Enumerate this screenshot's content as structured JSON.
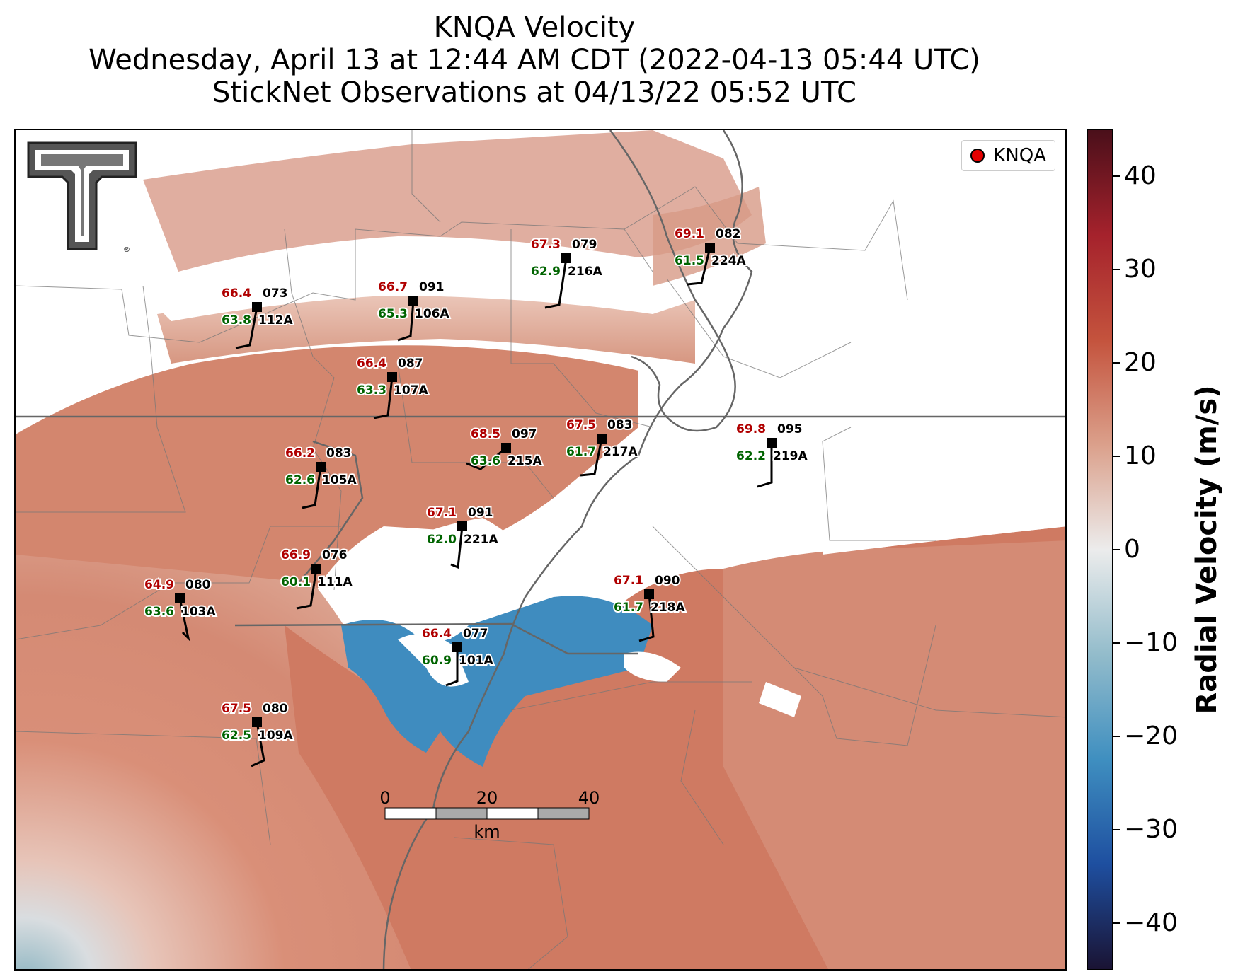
{
  "title": {
    "line1": "KNQA Velocity",
    "line2": "Wednesday, April 13 at 12:44 AM CDT (2022-04-13 05:44 UTC)",
    "line3": "StickNet Observations at 04/13/22 05:52 UTC"
  },
  "legend": {
    "label": "KNQA",
    "marker_color": "#e60000"
  },
  "colorbar": {
    "label": "Radial Velocity (m/s)",
    "min": -45,
    "max": 45,
    "ticks": [
      "40",
      "30",
      "20",
      "10",
      "0",
      "−10",
      "−20",
      "−30",
      "−40"
    ],
    "colors": [
      "#1a1333",
      "#1e4fa0",
      "#3f8fc0",
      "#93bccb",
      "#ececec",
      "#dba08b",
      "#c4533d",
      "#a5222c",
      "#4a0f1a"
    ]
  },
  "scalebar": {
    "ticks": [
      "0",
      "20",
      "40"
    ],
    "unit": "km"
  },
  "logo": {
    "name": "texas-tech-double-t-logo"
  },
  "stations": [
    {
      "id": "224A",
      "temp": "69.1",
      "dew": "61.5",
      "dir": "082"
    },
    {
      "id": "216A",
      "temp": "67.3",
      "dew": "62.9",
      "dir": "079"
    },
    {
      "id": "112A",
      "temp": "66.4",
      "dew": "63.8",
      "dir": "073"
    },
    {
      "id": "106A",
      "temp": "66.7",
      "dew": "65.3",
      "dir": "091"
    },
    {
      "id": "107A",
      "temp": "66.4",
      "dew": "63.3",
      "dir": "087"
    },
    {
      "id": "217A",
      "temp": "67.5",
      "dew": "61.7",
      "dir": "083"
    },
    {
      "id": "219A",
      "temp": "69.8",
      "dew": "62.2",
      "dir": "095"
    },
    {
      "id": "215A",
      "temp": "68.5",
      "dew": "63.6",
      "dir": "097"
    },
    {
      "id": "105A",
      "temp": "66.2",
      "dew": "62.6",
      "dir": "083"
    },
    {
      "id": "221A",
      "temp": "67.1",
      "dew": "62.0",
      "dir": "091"
    },
    {
      "id": "111A",
      "temp": "66.9",
      "dew": "60.1",
      "dir": "076"
    },
    {
      "id": "103A",
      "temp": "64.9",
      "dew": "63.6",
      "dir": "080"
    },
    {
      "id": "218A",
      "temp": "67.1",
      "dew": "61.7",
      "dir": "090"
    },
    {
      "id": "101A",
      "temp": "66.4",
      "dew": "60.9",
      "dir": "077"
    },
    {
      "id": "109A",
      "temp": "67.5",
      "dew": "62.5",
      "dir": "080"
    }
  ]
}
